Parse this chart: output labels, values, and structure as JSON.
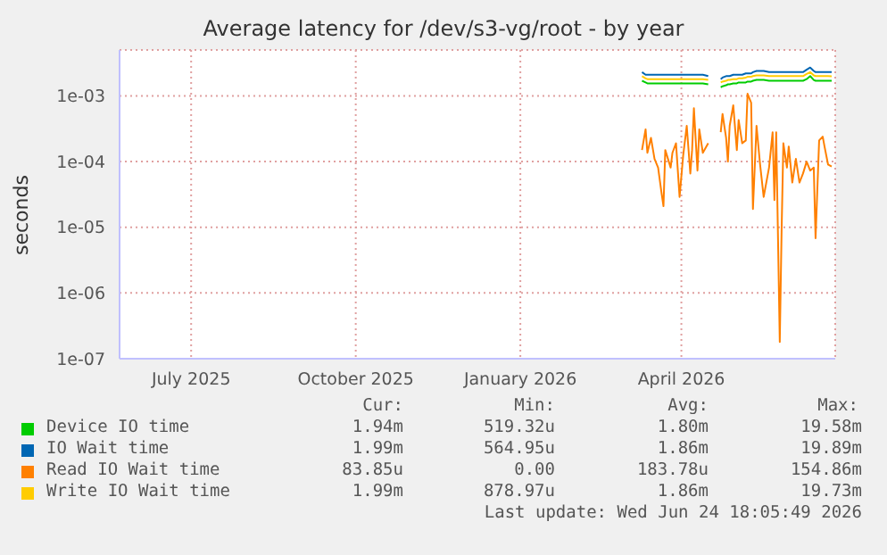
{
  "chart_data": {
    "type": "line",
    "title": "Average latency for /dev/s3-vg/root - by year",
    "ylabel": "seconds",
    "log": "y",
    "grid": true,
    "legend": "bottom",
    "marker": "none",
    "line_style": "solid",
    "xlim": [
      "2025-05-22",
      "2026-06-26"
    ],
    "xticks": [
      {
        "value": "2025-07-01",
        "label": "July 2025"
      },
      {
        "value": "2025-10-01",
        "label": "October 2025"
      },
      {
        "value": "2026-01-01",
        "label": "January 2026"
      },
      {
        "value": "2026-04-01",
        "label": "April 2026"
      }
    ],
    "ylim": [
      1e-07,
      0.005
    ],
    "yticks": [
      {
        "value": 1e-07,
        "label": "1e-07"
      },
      {
        "value": 1e-06,
        "label": "1e-06"
      },
      {
        "value": 1e-05,
        "label": "1e-05"
      },
      {
        "value": 0.0001,
        "label": "1e-04"
      },
      {
        "value": 0.001,
        "label": "1e-03"
      }
    ],
    "x": [
      "2026-03-10",
      "2026-03-12",
      "2026-03-13",
      "2026-03-15",
      "2026-03-17",
      "2026-03-19",
      "2026-03-21",
      "2026-03-22",
      "2026-03-23",
      "2026-03-26",
      "2026-03-27",
      "2026-03-29",
      "2026-03-31",
      "2026-04-02",
      "2026-04-04",
      "2026-04-06",
      "2026-04-07",
      "2026-04-08",
      "2026-04-10",
      "2026-04-11",
      "2026-04-13",
      "2026-04-16",
      "2026-04-19",
      "2026-04-23",
      "2026-04-24",
      "2026-04-26",
      "2026-04-27",
      "2026-04-28",
      "2026-04-30",
      "2026-05-02",
      "2026-05-03",
      "2026-05-05",
      "2026-05-07",
      "2026-05-08",
      "2026-05-10",
      "2026-05-11",
      "2026-05-13",
      "2026-05-15",
      "2026-05-17",
      "2026-05-20",
      "2026-05-22",
      "2026-05-23",
      "2026-05-24",
      "2026-05-26",
      "2026-05-27",
      "2026-05-28",
      "2026-05-30",
      "2026-05-31",
      "2026-06-02",
      "2026-06-04",
      "2026-06-06",
      "2026-06-08",
      "2026-06-10",
      "2026-06-12",
      "2026-06-14",
      "2026-06-15",
      "2026-06-17",
      "2026-06-19",
      "2026-06-20",
      "2026-06-22",
      "2026-06-24"
    ],
    "series": [
      {
        "name": "Device IO time",
        "color": "#00cc00",
        "values": [
          0.0017,
          0.0016,
          0.00155,
          0.00155,
          0.00155,
          0.00155,
          0.00155,
          0.00155,
          0.00155,
          0.00155,
          0.00155,
          0.00155,
          0.00155,
          0.00155,
          0.00155,
          0.00155,
          0.00155,
          0.00155,
          0.00155,
          0.00155,
          0.00155,
          0.0015,
          null,
          0.00135,
          0.0014,
          0.00145,
          0.0015,
          0.0015,
          0.00155,
          0.00155,
          0.0016,
          0.0016,
          0.0016,
          0.00165,
          0.00165,
          0.0017,
          0.00175,
          0.00175,
          0.00175,
          0.0017,
          0.0017,
          0.0017,
          0.0017,
          0.0017,
          0.0017,
          0.0017,
          0.0017,
          0.0017,
          0.0017,
          0.0017,
          0.0017,
          0.0017,
          0.0018,
          0.002,
          0.00175,
          0.0017,
          0.0017,
          0.0017,
          0.0017,
          0.0017,
          0.0017
        ]
      },
      {
        "name": "IO Wait time",
        "color": "#0066b3",
        "values": [
          0.0023,
          0.0021,
          0.0021,
          0.0021,
          0.0021,
          0.0021,
          0.0021,
          0.0021,
          0.0021,
          0.0021,
          0.0021,
          0.0021,
          0.0021,
          0.0021,
          0.0021,
          0.0021,
          0.0021,
          0.0021,
          0.0021,
          0.0021,
          0.0021,
          0.002,
          null,
          0.0018,
          0.0019,
          0.002,
          0.002,
          0.002,
          0.0021,
          0.0021,
          0.0021,
          0.0021,
          0.0022,
          0.0022,
          0.0022,
          0.0023,
          0.0024,
          0.0024,
          0.0024,
          0.0023,
          0.0023,
          0.0023,
          0.0023,
          0.0023,
          0.0023,
          0.0023,
          0.0023,
          0.0023,
          0.0023,
          0.0023,
          0.0023,
          0.0023,
          0.0025,
          0.0027,
          0.0024,
          0.0023,
          0.0023,
          0.0023,
          0.0023,
          0.0023,
          0.0023
        ]
      },
      {
        "name": "Read IO Wait time",
        "color": "#ff8000",
        "values": [
          0.00015,
          0.00031,
          0.000136,
          0.00023,
          0.00011,
          8.1e-05,
          3.2e-05,
          2.1e-05,
          0.00015,
          8.1e-05,
          0.000136,
          0.00019,
          2.9e-05,
          0.000123,
          0.00035,
          6.6e-05,
          0.00015,
          0.00065,
          7.3e-05,
          0.00031,
          0.000136,
          0.00019,
          null,
          0.00028,
          0.00053,
          0.00023,
          0.0001,
          0.00035,
          0.00072,
          0.00015,
          0.00043,
          0.00019,
          0.00021,
          0.00108,
          0.00079,
          1.9e-05,
          0.00035,
          9e-05,
          2.9e-05,
          8.1e-05,
          0.00028,
          2.6e-05,
          0.00028,
          1.8e-07,
          8.3e-06,
          0.00019,
          8.1e-05,
          0.00017,
          4.8e-05,
          0.00011,
          4.8e-05,
          6.6e-05,
          0.0001,
          7.3e-05,
          8.1e-05,
          6.8e-06,
          0.00021,
          0.00024,
          0.00017,
          9e-05,
          8.4e-05
        ]
      },
      {
        "name": "Write IO Wait time",
        "color": "#ffcc00",
        "values": [
          0.002,
          0.00185,
          0.0018,
          0.0018,
          0.0018,
          0.0018,
          0.0018,
          0.0018,
          0.0018,
          0.0018,
          0.0018,
          0.0018,
          0.0018,
          0.0018,
          0.0018,
          0.0018,
          0.0018,
          0.0018,
          0.0018,
          0.0018,
          0.0018,
          0.00175,
          null,
          0.0016,
          0.00165,
          0.0017,
          0.00175,
          0.00175,
          0.0018,
          0.0018,
          0.00185,
          0.00185,
          0.0019,
          0.00195,
          0.00195,
          0.002,
          0.00205,
          0.00205,
          0.00205,
          0.002,
          0.002,
          0.002,
          0.002,
          0.002,
          0.002,
          0.002,
          0.002,
          0.002,
          0.002,
          0.002,
          0.002,
          0.002,
          0.00215,
          0.0023,
          0.00205,
          0.002,
          0.002,
          0.002,
          0.002,
          0.002,
          0.00199
        ]
      }
    ],
    "annotations": [
      "Cur:",
      "Min:",
      "Avg:",
      "Max:",
      "1.94m",
      "519.32u",
      "1.80m",
      "19.58m",
      "1.99m",
      "564.95u",
      "1.86m",
      "19.89m",
      "83.85u",
      "0.00",
      "183.78u",
      "154.86m",
      "1.99m",
      "878.97u",
      "1.86m",
      "19.73m",
      "Last update: Wed Jun 24 18:05:49 2026"
    ]
  }
}
